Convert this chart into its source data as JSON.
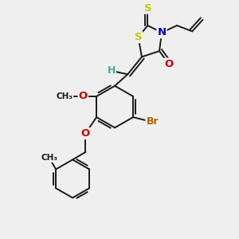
{
  "background_color": "#efefef",
  "bond_color": "#1a1a1a",
  "atom_colors": {
    "S": "#c8c800",
    "N": "#0000cc",
    "O": "#cc0000",
    "Br": "#b86000",
    "H": "#44aaaa",
    "C": "#1a1a1a"
  },
  "figsize": [
    3.0,
    3.0
  ],
  "dpi": 100
}
